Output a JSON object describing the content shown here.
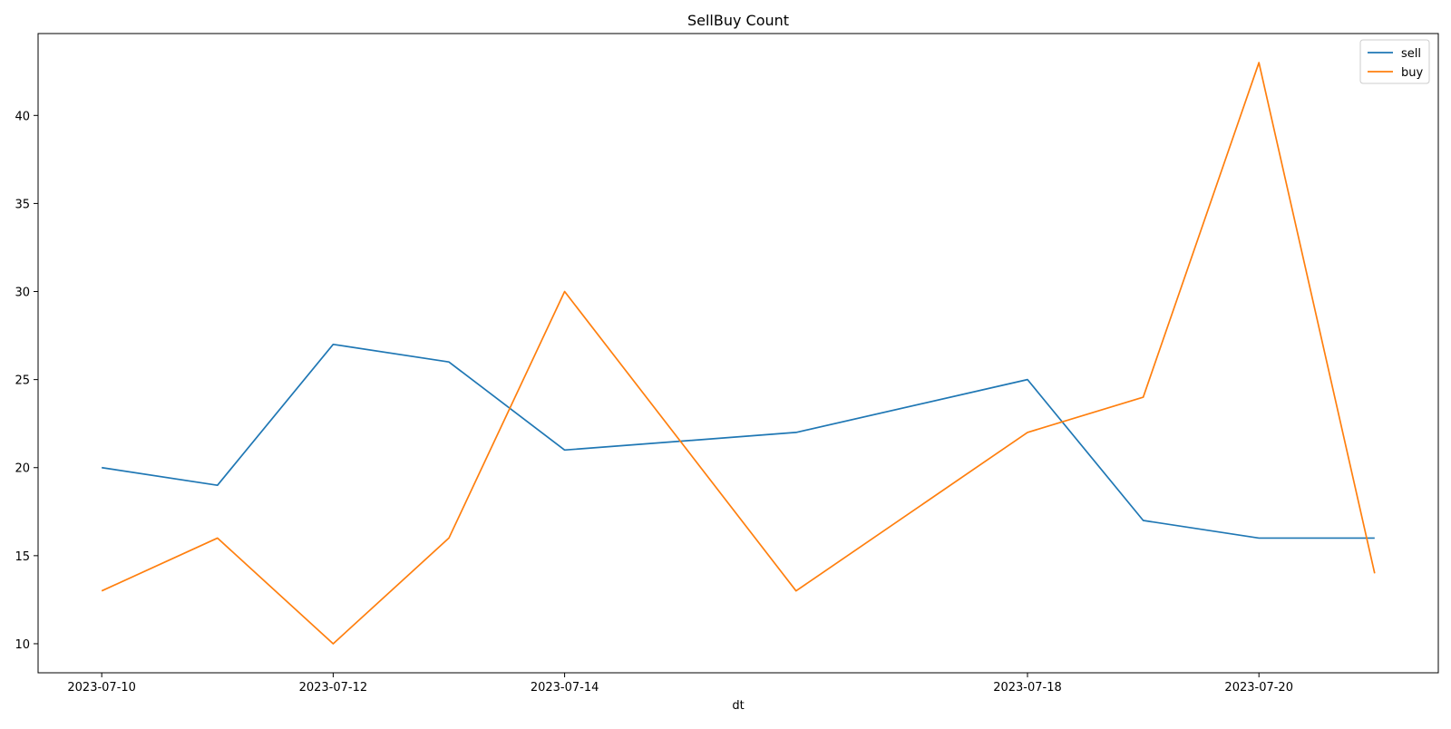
{
  "chart_data": {
    "type": "line",
    "title": "SellBuy Count",
    "xlabel": "dt",
    "ylabel": "",
    "x": [
      "2023-07-10",
      "2023-07-11",
      "2023-07-12",
      "2023-07-13",
      "2023-07-14",
      "2023-07-16",
      "2023-07-18",
      "2023-07-19",
      "2023-07-20",
      "2023-07-21"
    ],
    "xticks": [
      "2023-07-10",
      "2023-07-12",
      "2023-07-14",
      "2023-07-18",
      "2023-07-20"
    ],
    "yticks": [
      10,
      15,
      20,
      25,
      30,
      35,
      40
    ],
    "ylim": [
      8.35,
      44.65
    ],
    "grid": false,
    "legend": "top-right",
    "series": [
      {
        "name": "sell",
        "color": "#1f77b4",
        "values": [
          20,
          19,
          27,
          26,
          21,
          22,
          25,
          17,
          16,
          16
        ]
      },
      {
        "name": "buy",
        "color": "#ff7f0e",
        "values": [
          13,
          16,
          10,
          16,
          30,
          13,
          22,
          24,
          43,
          14
        ]
      }
    ]
  }
}
